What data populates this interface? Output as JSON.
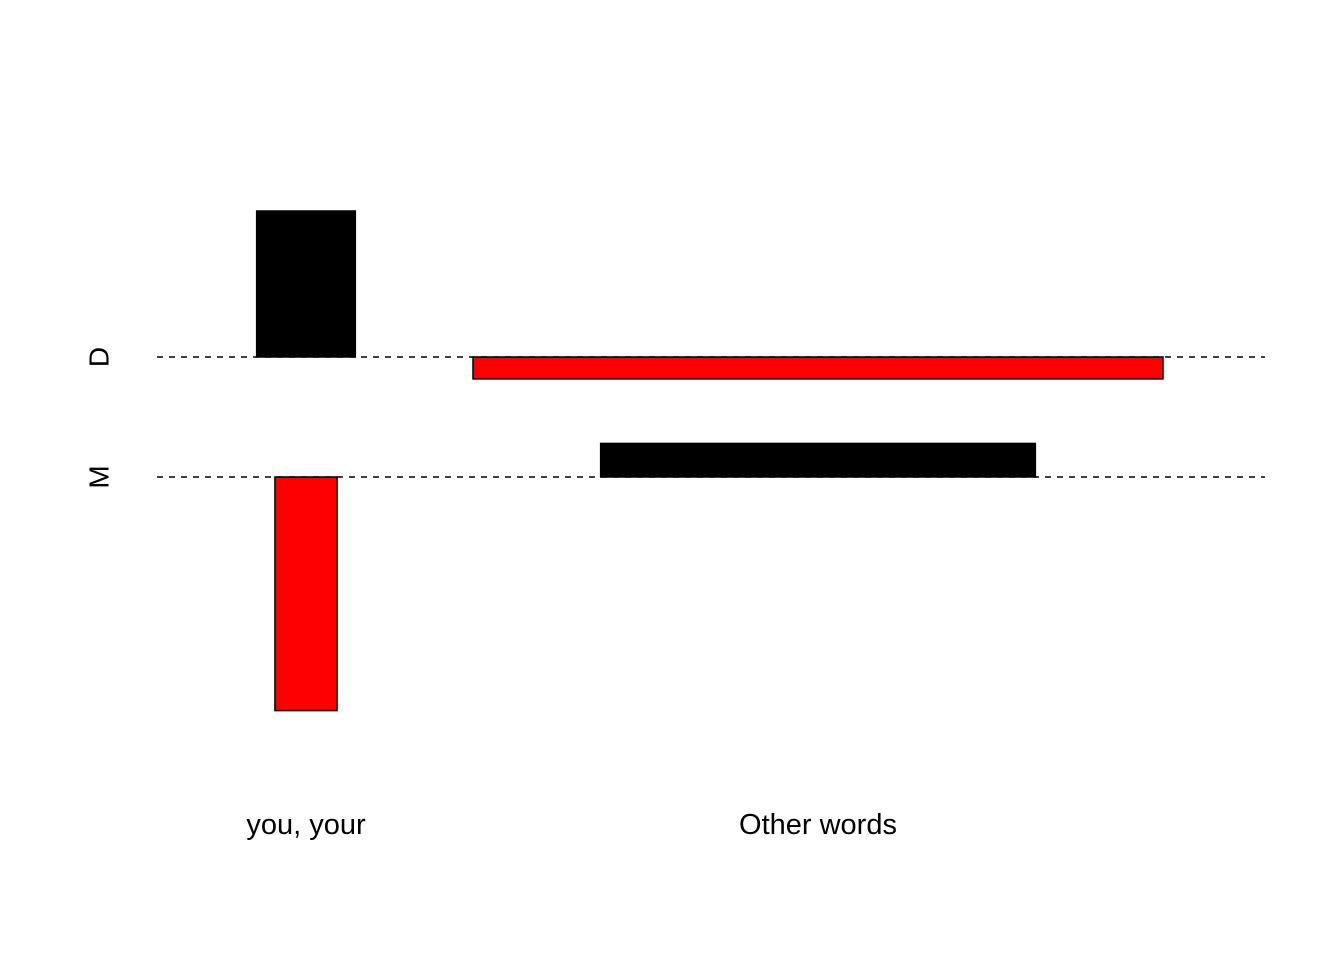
{
  "chart_data": {
    "type": "bar",
    "description_rows": [
      "D",
      "M"
    ],
    "categories": [
      "you, your",
      "Other words"
    ],
    "rows": [
      {
        "label": "D",
        "bars": [
          {
            "category": "you, your",
            "value": 1.0,
            "color": "#000000",
            "width_share": 0.143
          },
          {
            "category": "Other words",
            "value": -0.15,
            "color": "#ff0000",
            "width_share": 1.0
          }
        ]
      },
      {
        "label": "M",
        "bars": [
          {
            "category": "you, your",
            "value": -1.6,
            "color": "#ff0000",
            "width_share": 0.09
          },
          {
            "category": "Other words",
            "value": 0.23,
            "color": "#000000",
            "width_share": 0.63
          }
        ]
      }
    ],
    "baseline_style": "dashed",
    "grid": false,
    "legend": "none"
  },
  "colors": {
    "black": "#000000",
    "red": "#ff0000",
    "background": "#ffffff"
  }
}
